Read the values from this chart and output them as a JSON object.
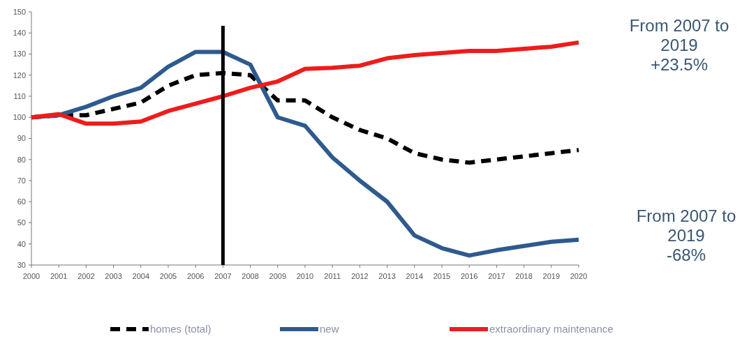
{
  "chart_data": {
    "type": "line",
    "x": [
      2000,
      2001,
      2002,
      2003,
      2004,
      2005,
      2006,
      2007,
      2008,
      2009,
      2010,
      2011,
      2012,
      2013,
      2014,
      2015,
      2016,
      2017,
      2018,
      2019,
      2020
    ],
    "series": [
      {
        "name": "homes (total)",
        "color": "#000000",
        "line_style": "dashed",
        "values": [
          100,
          101,
          101,
          104,
          107,
          115,
          120,
          121,
          120,
          108,
          108,
          100,
          94,
          90,
          83,
          80,
          78.5,
          80,
          81.5,
          83,
          84.5
        ]
      },
      {
        "name": "new",
        "color": "#2e5a8e",
        "values": [
          100,
          101,
          105,
          110,
          114,
          124,
          131,
          131,
          125,
          100,
          96,
          81,
          70,
          60,
          44,
          38,
          34.5,
          37,
          39,
          41,
          42
        ]
      },
      {
        "name": "extraordinary maintenance",
        "color": "#ee1c1c",
        "values": [
          100,
          101.5,
          97,
          97,
          98,
          103,
          106.5,
          110,
          114,
          117,
          123,
          123.5,
          124.5,
          128,
          129.5,
          130.5,
          131.5,
          131.5,
          132.5,
          133.5,
          135.5
        ]
      }
    ],
    "xlim": [
      2000,
      2020
    ],
    "xticks": [
      2000,
      2001,
      2002,
      2003,
      2004,
      2005,
      2006,
      2007,
      2008,
      2009,
      2010,
      2011,
      2012,
      2013,
      2014,
      2015,
      2016,
      2017,
      2018,
      2019,
      2020
    ],
    "ylim": [
      30,
      150
    ],
    "yticks": [
      30,
      40,
      50,
      60,
      70,
      80,
      90,
      100,
      110,
      120,
      130,
      140,
      150
    ],
    "ref_lines": [
      {
        "axis": "x",
        "value": 2007,
        "color": "#000000"
      }
    ],
    "annotations": [
      "From 2007 to\n2019\n+23.5%",
      "From 2007 to\n2019\n-68%"
    ],
    "legend": "bottom",
    "grid": false,
    "marker": "none"
  }
}
